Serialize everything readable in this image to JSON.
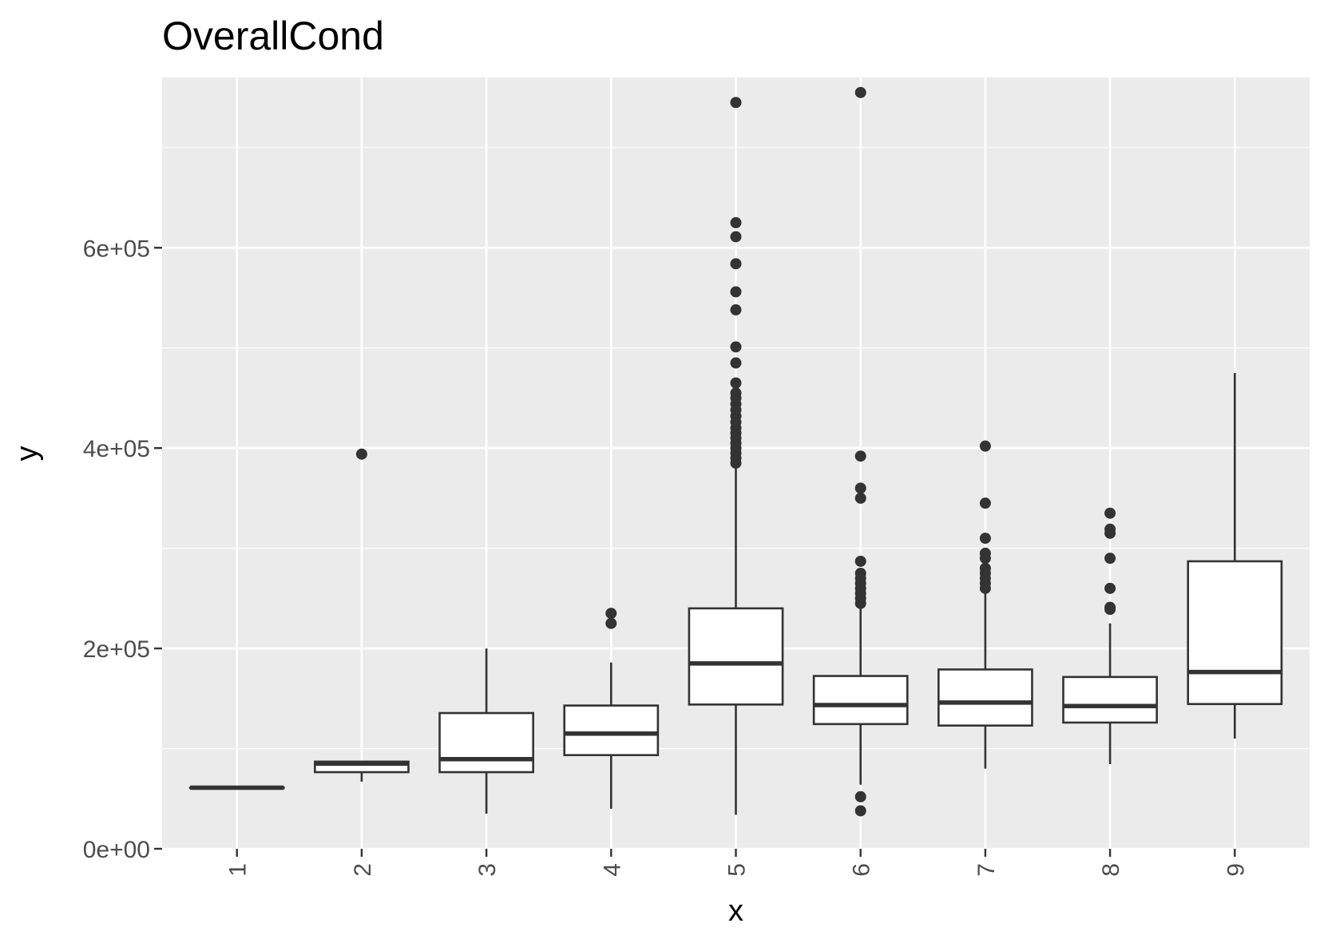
{
  "chart_data": {
    "type": "box",
    "title": "OverallCond",
    "xlabel": "x",
    "ylabel": "y",
    "categories": [
      "1",
      "2",
      "3",
      "4",
      "5",
      "6",
      "7",
      "8",
      "9"
    ],
    "ylim": [
      0,
      770000
    ],
    "yticks": [
      0,
      200000,
      400000,
      600000
    ],
    "ytick_labels": [
      "0e+00",
      "2e+05",
      "4e+05",
      "6e+05"
    ],
    "grid": true,
    "background": "#ebebeb",
    "box_fill": "#ffffff",
    "line_color": "#333333",
    "boxes": [
      {
        "category": "1",
        "whisker_low": 61000,
        "q1": 61000,
        "median": 61000,
        "q3": 61000,
        "whisker_high": 61000,
        "outliers": []
      },
      {
        "category": "2",
        "whisker_low": 67000,
        "q1": 76500,
        "median": 85000,
        "q3": 87000,
        "whisker_high": 87000,
        "outliers": [
          394000
        ]
      },
      {
        "category": "3",
        "whisker_low": 35000,
        "q1": 76500,
        "median": 89500,
        "q3": 135500,
        "whisker_high": 200000,
        "outliers": []
      },
      {
        "category": "4",
        "whisker_low": 40000,
        "q1": 93500,
        "median": 115000,
        "q3": 143000,
        "whisker_high": 186000,
        "outliers": [
          225000,
          235000
        ]
      },
      {
        "category": "5",
        "whisker_low": 34000,
        "q1": 144000,
        "median": 185000,
        "q3": 240000,
        "whisker_high": 383000,
        "outliers": [
          385000,
          390000,
          395000,
          400000,
          405000,
          410000,
          415000,
          420000,
          426000,
          432000,
          438000,
          444000,
          450000,
          455000,
          465000,
          485000,
          501000,
          538000,
          556000,
          584000,
          611000,
          625000,
          745000
        ]
      },
      {
        "category": "6",
        "whisker_low": 64000,
        "q1": 124500,
        "median": 143500,
        "q3": 172500,
        "whisker_high": 242000,
        "outliers": [
          37900,
          52000,
          245000,
          250000,
          255000,
          260000,
          265000,
          270000,
          275000,
          287000,
          350000,
          360000,
          392000,
          755000
        ]
      },
      {
        "category": "7",
        "whisker_low": 80000,
        "q1": 123000,
        "median": 146000,
        "q3": 179000,
        "whisker_high": 255000,
        "outliers": [
          260000,
          265000,
          270000,
          275000,
          280000,
          290000,
          295000,
          310000,
          345000,
          402000
        ]
      },
      {
        "category": "8",
        "whisker_low": 84500,
        "q1": 126000,
        "median": 142500,
        "q3": 171500,
        "whisker_high": 225000,
        "outliers": [
          239000,
          241000,
          260000,
          290000,
          315000,
          319000,
          335000
        ]
      },
      {
        "category": "9",
        "whisker_low": 110000,
        "q1": 144500,
        "median": 176500,
        "q3": 287000,
        "whisker_high": 475000,
        "outliers": []
      }
    ]
  }
}
